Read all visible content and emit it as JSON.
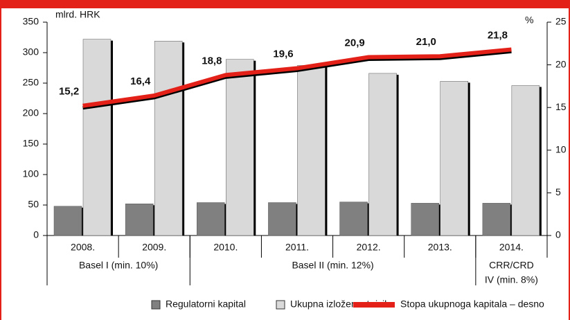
{
  "chart_data": {
    "type": "bar",
    "y_label": "mlrd. HRK",
    "y2_label": "%",
    "categories": [
      "2008.",
      "2009.",
      "2010.",
      "2011.",
      "2012.",
      "2013.",
      "2014."
    ],
    "groups": [
      [
        "Basel I (min. 10%)"
      ],
      [
        "Basel II (min. 12%)"
      ],
      [
        "CRR/CRD",
        "IV (min. 8%)"
      ]
    ],
    "series": [
      {
        "name": "Regulatorni kapital",
        "type": "bar",
        "color": "#808080",
        "values": [
          48,
          52,
          54,
          54,
          55,
          53,
          53
        ]
      },
      {
        "name": "Ukupna izloženost riziku",
        "type": "bar",
        "color": "#d9d9d9",
        "values": [
          322,
          319,
          289,
          279,
          266,
          253,
          246
        ]
      },
      {
        "name": "Stopa ukupnoga kapitala – desno",
        "type": "line",
        "axis": "y2",
        "color": "#e32119",
        "values": [
          15.2,
          16.4,
          18.8,
          19.6,
          20.9,
          21.0,
          21.8
        ],
        "value_labels": [
          "15,2",
          "16,4",
          "18,8",
          "19,6",
          "20,9",
          "21,0",
          "21,8"
        ]
      }
    ],
    "ylim": [
      0,
      350
    ],
    "yticks": [
      0,
      50,
      100,
      150,
      200,
      250,
      300,
      350
    ],
    "y2lim": [
      0,
      25
    ],
    "y2ticks": [
      0,
      5,
      10,
      15,
      20,
      25
    ]
  }
}
